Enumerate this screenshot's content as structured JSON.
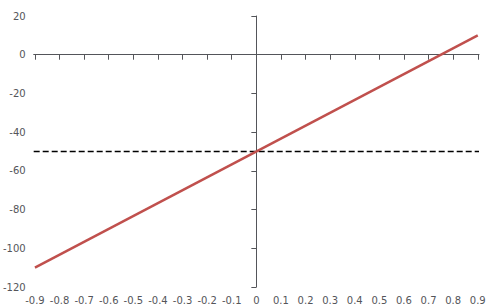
{
  "chart_data": {
    "type": "line",
    "series": [
      {
        "type": "line",
        "x": [
          -0.9,
          0.9
        ],
        "values": [
          -110,
          10
        ],
        "color": "#c0504d",
        "line_style": "solid"
      },
      {
        "type": "hline",
        "values": [
          -50
        ],
        "color": "#000000",
        "line_style": "dashed"
      }
    ],
    "xlim": [
      -0.905,
      0.905
    ],
    "xticks": [
      -0.9,
      -0.8,
      -0.7,
      -0.6,
      -0.5,
      -0.4,
      -0.3,
      -0.2,
      -0.1,
      0,
      0.1,
      0.2,
      0.3,
      0.4,
      0.5,
      0.6,
      0.7,
      0.8,
      0.9
    ],
    "ylim": [
      -120,
      20
    ],
    "yticks": [
      -120,
      -100,
      -80,
      -60,
      -40,
      -20,
      0,
      20
    ],
    "grid": false
  }
}
